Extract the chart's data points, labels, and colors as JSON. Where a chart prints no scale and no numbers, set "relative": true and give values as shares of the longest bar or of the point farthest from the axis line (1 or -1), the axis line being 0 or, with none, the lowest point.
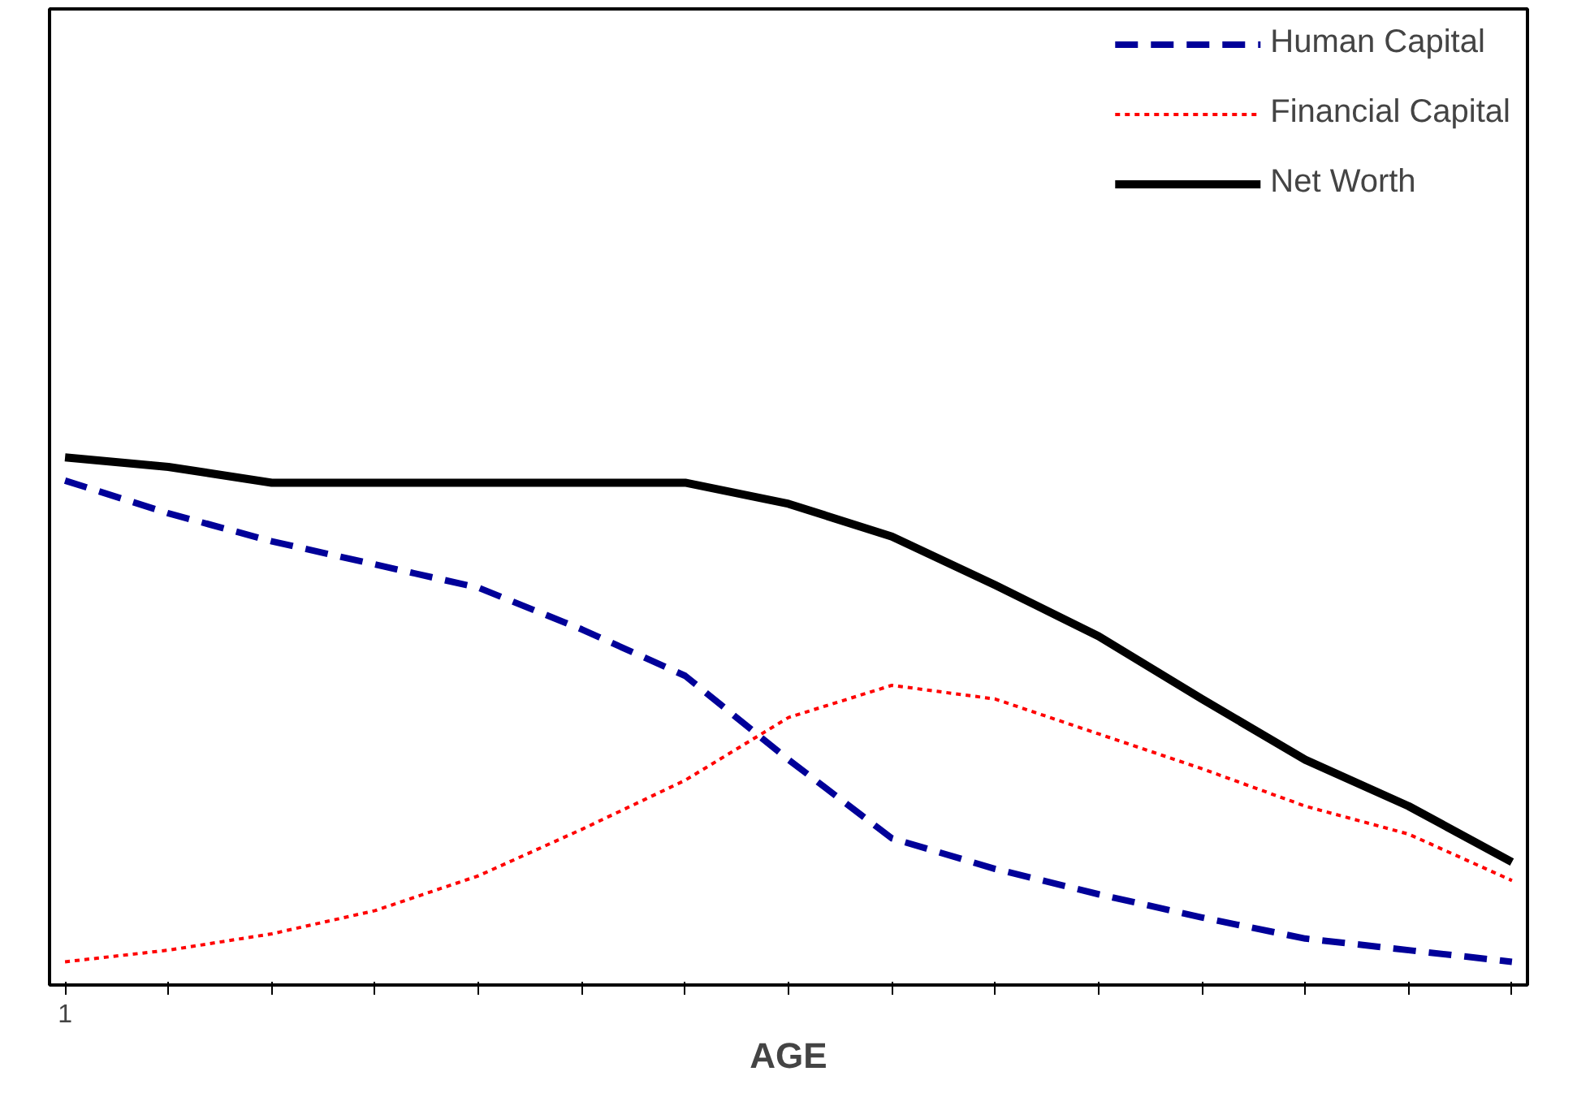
{
  "chart_data": {
    "type": "line",
    "relative": true,
    "xlabel": "AGE",
    "legend": "top right",
    "grid": false,
    "annotations": [
      "1"
    ],
    "categories": [
      null,
      null,
      null,
      null,
      null,
      null,
      null,
      null,
      null,
      null,
      null,
      null,
      null,
      null,
      null
    ],
    "series": [
      {
        "name": "Human Capital",
        "color": "#000099",
        "line_style": "dashed",
        "values": [
          0.956,
          0.894,
          0.841,
          0.797,
          0.753,
          0.674,
          0.586,
          0.427,
          0.278,
          0.22,
          0.172,
          0.128,
          0.088,
          0.066,
          0.044
        ]
      },
      {
        "name": "Financial Capital",
        "color": "#ff0000",
        "line_style": "dotted",
        "values": [
          0.044,
          0.066,
          0.097,
          0.141,
          0.207,
          0.295,
          0.388,
          0.507,
          0.568,
          0.542,
          0.476,
          0.41,
          0.339,
          0.286,
          0.198
        ]
      },
      {
        "name": "Net Worth",
        "color": "#000000",
        "line_style": "solid",
        "values": [
          1.0,
          0.982,
          0.952,
          0.952,
          0.952,
          0.952,
          0.952,
          0.912,
          0.85,
          0.758,
          0.661,
          0.542,
          0.427,
          0.339,
          0.233
        ]
      }
    ]
  }
}
